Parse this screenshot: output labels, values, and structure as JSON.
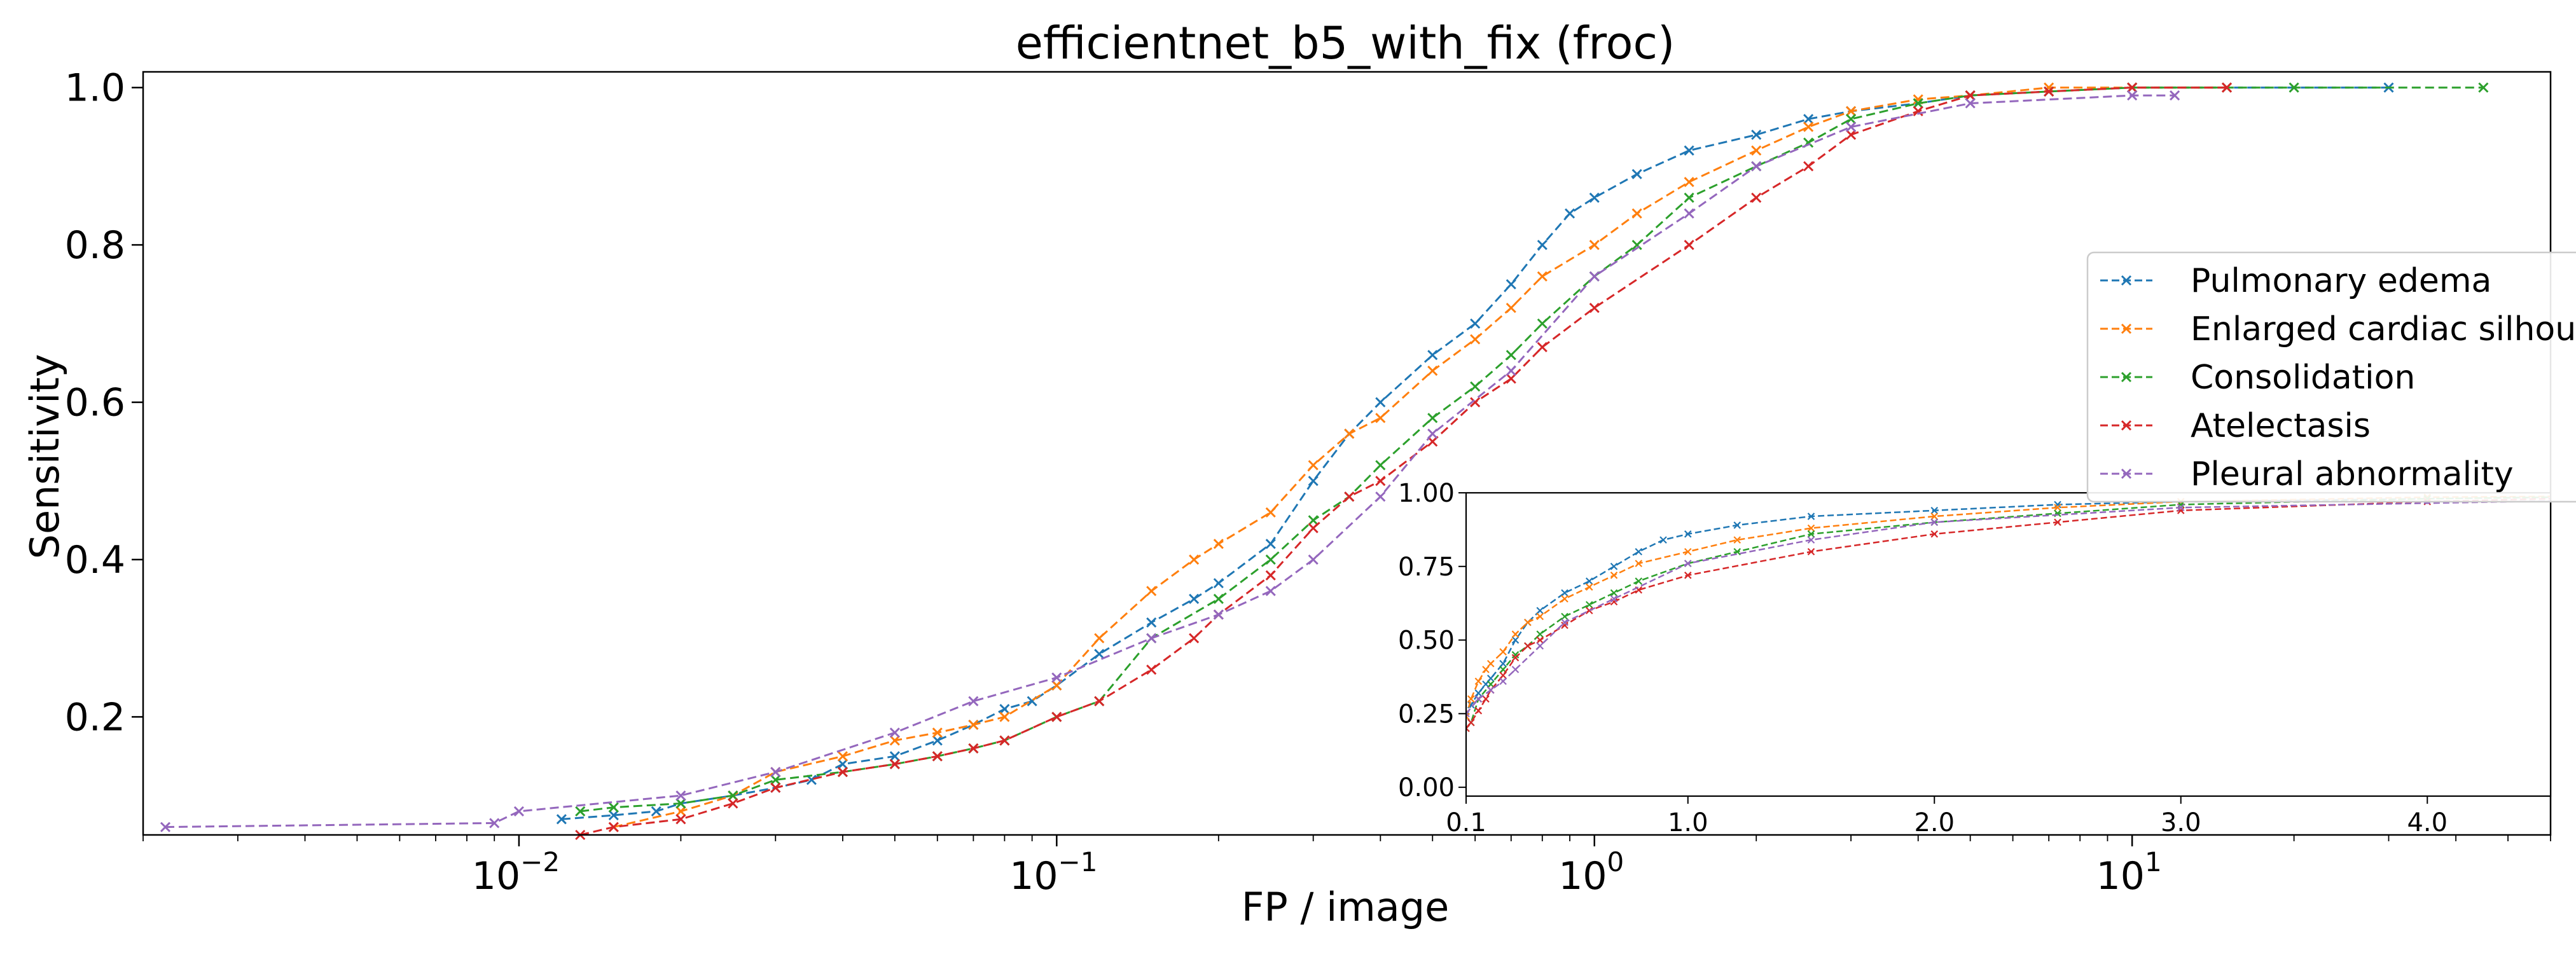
{
  "chart_data": {
    "type": "line",
    "title": "efficientnet_b5_with_fix (froc)",
    "xlabel": "FP / image",
    "ylabel": "Sensitivity",
    "xscale": "log",
    "xlim": [
      0.002,
      60
    ],
    "ylim": [
      0.05,
      1.02
    ],
    "x_ticks": [
      {
        "value": 0.01,
        "base": "10",
        "exp": "−2"
      },
      {
        "value": 0.1,
        "base": "10",
        "exp": "−1"
      },
      {
        "value": 1,
        "base": "10",
        "exp": "0"
      },
      {
        "value": 10,
        "base": "10",
        "exp": "1"
      }
    ],
    "y_ticks": [
      {
        "value": 0.2,
        "label": "0.2"
      },
      {
        "value": 0.4,
        "label": "0.4"
      },
      {
        "value": 0.6,
        "label": "0.6"
      },
      {
        "value": 0.8,
        "label": "0.8"
      },
      {
        "value": 1.0,
        "label": "1.0"
      }
    ],
    "grid": false,
    "legend_position": "right",
    "marker": "x",
    "line_style": "dashed",
    "series": [
      {
        "name": "Pulmonary edema",
        "color": "#1f77b4",
        "x": [
          0.012,
          0.015,
          0.018,
          0.02,
          0.025,
          0.03,
          0.035,
          0.04,
          0.05,
          0.06,
          0.07,
          0.08,
          0.09,
          0.1,
          0.12,
          0.15,
          0.18,
          0.2,
          0.25,
          0.3,
          0.35,
          0.4,
          0.5,
          0.6,
          0.7,
          0.8,
          0.9,
          1.0,
          1.2,
          1.5,
          2.0,
          2.5,
          3.0,
          4.0,
          5.0,
          7.0,
          10.0,
          15.0,
          30.0
        ],
        "y": [
          0.07,
          0.075,
          0.08,
          0.09,
          0.1,
          0.11,
          0.12,
          0.14,
          0.15,
          0.17,
          0.19,
          0.21,
          0.22,
          0.24,
          0.28,
          0.32,
          0.35,
          0.37,
          0.42,
          0.5,
          0.56,
          0.6,
          0.66,
          0.7,
          0.75,
          0.8,
          0.84,
          0.86,
          0.89,
          0.92,
          0.94,
          0.96,
          0.97,
          0.98,
          0.99,
          0.995,
          1.0,
          1.0,
          1.0
        ]
      },
      {
        "name": "Enlarged cardiac silhou",
        "color": "#ff7f0e",
        "x": [
          0.015,
          0.02,
          0.025,
          0.03,
          0.04,
          0.05,
          0.06,
          0.07,
          0.08,
          0.1,
          0.12,
          0.15,
          0.18,
          0.2,
          0.25,
          0.3,
          0.35,
          0.4,
          0.5,
          0.6,
          0.7,
          0.8,
          1.0,
          1.2,
          1.5,
          2.0,
          2.5,
          3.0,
          4.0,
          5.0,
          7.0,
          10.0,
          15.0
        ],
        "y": [
          0.06,
          0.08,
          0.1,
          0.13,
          0.15,
          0.17,
          0.18,
          0.19,
          0.2,
          0.24,
          0.3,
          0.36,
          0.4,
          0.42,
          0.46,
          0.52,
          0.56,
          0.58,
          0.64,
          0.68,
          0.72,
          0.76,
          0.8,
          0.84,
          0.88,
          0.92,
          0.95,
          0.97,
          0.985,
          0.99,
          1.0,
          1.0,
          1.0
        ]
      },
      {
        "name": "Consolidation",
        "color": "#2ca02c",
        "x": [
          0.013,
          0.015,
          0.02,
          0.025,
          0.03,
          0.04,
          0.05,
          0.06,
          0.07,
          0.08,
          0.1,
          0.12,
          0.15,
          0.2,
          0.25,
          0.3,
          0.35,
          0.4,
          0.5,
          0.6,
          0.7,
          0.8,
          1.0,
          1.2,
          1.5,
          2.0,
          2.5,
          3.0,
          4.0,
          5.0,
          7.0,
          10.0,
          20.0,
          45.0
        ],
        "y": [
          0.08,
          0.085,
          0.09,
          0.1,
          0.12,
          0.13,
          0.14,
          0.15,
          0.16,
          0.17,
          0.2,
          0.22,
          0.3,
          0.35,
          0.4,
          0.45,
          0.48,
          0.52,
          0.58,
          0.62,
          0.66,
          0.7,
          0.76,
          0.8,
          0.86,
          0.9,
          0.93,
          0.96,
          0.98,
          0.99,
          0.995,
          1.0,
          1.0,
          1.0
        ]
      },
      {
        "name": "Atelectasis",
        "color": "#d62728",
        "x": [
          0.013,
          0.015,
          0.02,
          0.025,
          0.03,
          0.04,
          0.05,
          0.06,
          0.07,
          0.08,
          0.1,
          0.12,
          0.15,
          0.18,
          0.2,
          0.25,
          0.3,
          0.35,
          0.4,
          0.5,
          0.6,
          0.7,
          0.8,
          1.0,
          1.5,
          2.0,
          2.5,
          3.0,
          4.0,
          5.0,
          7.0,
          10.0,
          15.0
        ],
        "y": [
          0.05,
          0.06,
          0.07,
          0.09,
          0.11,
          0.13,
          0.14,
          0.15,
          0.16,
          0.17,
          0.2,
          0.22,
          0.26,
          0.3,
          0.33,
          0.38,
          0.44,
          0.48,
          0.5,
          0.55,
          0.6,
          0.63,
          0.67,
          0.72,
          0.8,
          0.86,
          0.9,
          0.94,
          0.97,
          0.99,
          0.995,
          1.0,
          1.0
        ]
      },
      {
        "name": "Pleural abnormality",
        "color": "#9467bd",
        "x": [
          0.0022,
          0.009,
          0.01,
          0.02,
          0.03,
          0.05,
          0.07,
          0.1,
          0.15,
          0.2,
          0.25,
          0.3,
          0.4,
          0.5,
          0.7,
          1.0,
          1.5,
          2.0,
          3.0,
          5.0,
          10.0,
          12.0
        ],
        "y": [
          0.06,
          0.065,
          0.08,
          0.1,
          0.13,
          0.18,
          0.22,
          0.25,
          0.3,
          0.33,
          0.36,
          0.4,
          0.48,
          0.56,
          0.64,
          0.76,
          0.84,
          0.9,
          0.95,
          0.98,
          0.99,
          0.99
        ]
      }
    ],
    "inset": {
      "type": "line",
      "xscale": "linear",
      "xlim": [
        0.1,
        4.5
      ],
      "ylim": [
        -0.03,
        1.0
      ],
      "x_ticks": [
        {
          "value": 0.1,
          "label": "0.1"
        },
        {
          "value": 1.0,
          "label": "1.0"
        },
        {
          "value": 2.0,
          "label": "2.0"
        },
        {
          "value": 3.0,
          "label": "3.0"
        },
        {
          "value": 4.0,
          "label": "4.0"
        }
      ],
      "y_ticks": [
        {
          "value": 0.0,
          "label": "0.00"
        },
        {
          "value": 0.25,
          "label": "0.25"
        },
        {
          "value": 0.5,
          "label": "0.50"
        },
        {
          "value": 0.75,
          "label": "0.75"
        },
        {
          "value": 1.0,
          "label": "1.00"
        }
      ]
    }
  }
}
